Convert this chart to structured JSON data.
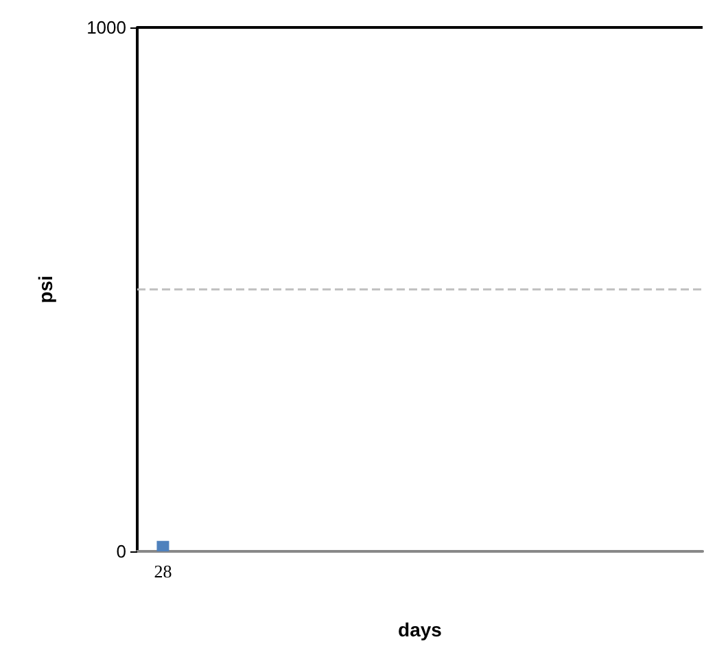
{
  "chart_data": {
    "type": "bar",
    "xlabel": "days",
    "ylabel": "psi",
    "categories": [
      "28",
      null,
      null,
      null,
      null,
      null,
      null,
      null,
      null,
      null,
      null
    ],
    "values": [
      20,
      null,
      null,
      null,
      null,
      null,
      null,
      null,
      null,
      null,
      null
    ],
    "color": "#4f81bd",
    "ylim": [
      0,
      1000
    ],
    "yticks": [
      0,
      1000
    ],
    "grid": "y",
    "ref_lines": [
      {
        "axis": "y",
        "value": 500,
        "color": "#bfbfbf",
        "line_style": "dashed"
      }
    ]
  }
}
